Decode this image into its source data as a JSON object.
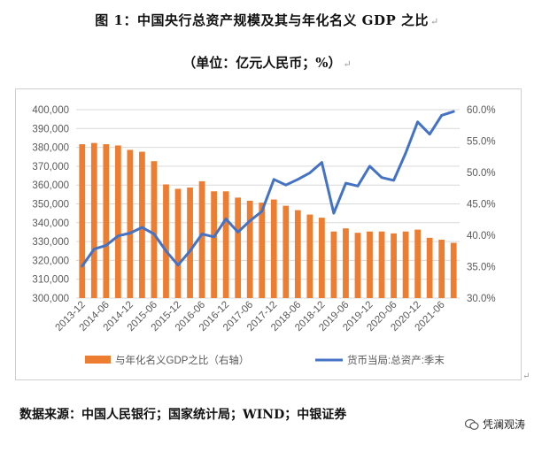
{
  "header": {
    "title": "图 1：中国央行总资产规模及其与年化名义 GDP 之比",
    "subtitle": "（单位：亿元人民币；%）"
  },
  "footer": {
    "source": "数据来源：中国人民银行；国家统计局；WIND；中银证券",
    "watermark": "凭澜观涛"
  },
  "chart_data": {
    "type": "bar+line",
    "categories": [
      "2013-12",
      "2014-03",
      "2014-06",
      "2014-09",
      "2014-12",
      "2015-03",
      "2015-06",
      "2015-09",
      "2015-12",
      "2016-03",
      "2016-06",
      "2016-09",
      "2016-12",
      "2017-03",
      "2017-06",
      "2017-09",
      "2017-12",
      "2018-03",
      "2018-06",
      "2018-09",
      "2018-12",
      "2019-03",
      "2019-06",
      "2019-09",
      "2019-12",
      "2020-03",
      "2020-06",
      "2020-09",
      "2020-12",
      "2021-03",
      "2021-06",
      "2021-09"
    ],
    "x_tick_labels": [
      "2013-12",
      "2014-06",
      "2014-12",
      "2015-06",
      "2015-12",
      "2016-06",
      "2016-12",
      "2017-06",
      "2017-12",
      "2018-06",
      "2018-12",
      "2019-06",
      "2019-12",
      "2020-06",
      "2020-12",
      "2021-06"
    ],
    "series": [
      {
        "name": "与年化名义GDP之比（右轴）",
        "type": "bar",
        "axis": "right",
        "color": "#ED7D31",
        "values": [
          54.5,
          54.7,
          54.5,
          54.3,
          53.6,
          53.3,
          51.8,
          48.1,
          47.4,
          47.6,
          48.6,
          47.0,
          47.0,
          46.0,
          45.5,
          45.2,
          45.7,
          44.7,
          44.0,
          43.3,
          42.8,
          40.6,
          41.1,
          40.4,
          40.6,
          40.6,
          40.3,
          40.6,
          40.9,
          39.6,
          39.3,
          38.8
        ]
      },
      {
        "name": "货币当局:总资产:季末",
        "type": "line",
        "axis": "left",
        "color": "#4472C4",
        "values": [
          317000,
          326000,
          328000,
          333000,
          334500,
          337500,
          334000,
          325000,
          317500,
          325000,
          334000,
          332500,
          342000,
          335000,
          341000,
          346000,
          363000,
          360000,
          363000,
          366500,
          372000,
          345000,
          361000,
          359500,
          370000,
          364000,
          362500,
          377000,
          393500,
          387000,
          397000,
          399000
        ]
      }
    ],
    "y_left": {
      "min": 300000,
      "max": 400000,
      "step": 10000,
      "tick_labels": [
        "300,000",
        "310,000",
        "320,000",
        "330,000",
        "340,000",
        "350,000",
        "360,000",
        "370,000",
        "380,000",
        "390,000",
        "400,000"
      ]
    },
    "y_right": {
      "min": 30,
      "max": 60,
      "step": 5,
      "tick_labels": [
        "30.0%",
        "35.0%",
        "40.0%",
        "45.0%",
        "50.0%",
        "55.0%",
        "60.0%"
      ]
    },
    "grid": true,
    "legend_position": "bottom"
  }
}
